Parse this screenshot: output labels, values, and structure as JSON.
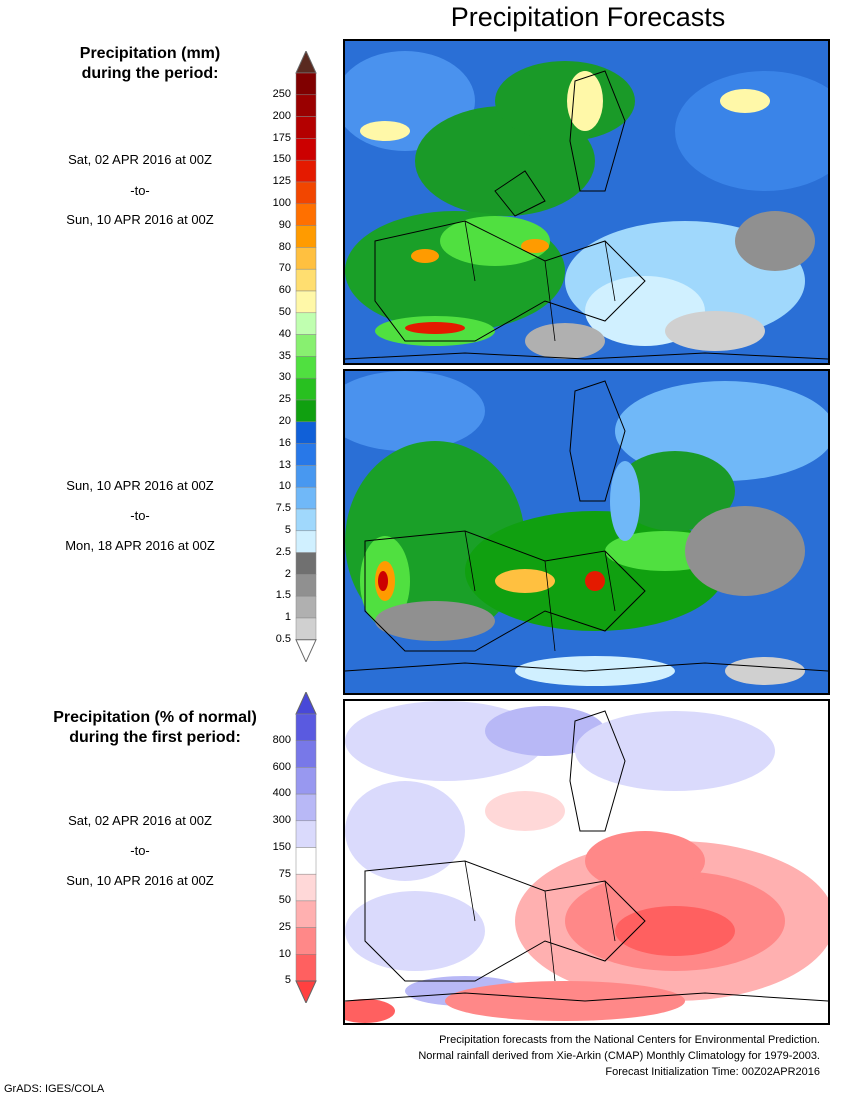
{
  "title": "Precipitation Forecasts",
  "legend_mm": {
    "heading_line1": "Precipitation (mm)",
    "heading_line2": "during the period:",
    "labels": [
      "250",
      "200",
      "175",
      "150",
      "125",
      "100",
      "90",
      "80",
      "70",
      "60",
      "50",
      "40",
      "35",
      "30",
      "25",
      "20",
      "16",
      "13",
      "10",
      "7.5",
      "5",
      "2.5",
      "2",
      "1.5",
      "1",
      "0.5"
    ],
    "colors": [
      "#800000",
      "#9a0000",
      "#b40000",
      "#cc0000",
      "#e41a00",
      "#f24600",
      "#ff7000",
      "#ff9b00",
      "#ffc040",
      "#ffde70",
      "#fff8a8",
      "#c0ffb0",
      "#88f070",
      "#50e040",
      "#28c020",
      "#10a010",
      "#1060d8",
      "#2878e8",
      "#4898f0",
      "#70b8f8",
      "#a0d8fc",
      "#d0f0ff",
      "#707070",
      "#909090",
      "#b0b0b0",
      "#d0d0d0"
    ],
    "top_arrow_color": "#5a2a20",
    "bottom_arrow_color": "#ffffff"
  },
  "period1": {
    "start": "Sat, 02 APR 2016 at 00Z",
    "sep": "-to-",
    "end": "Sun, 10 APR 2016 at 00Z"
  },
  "period2": {
    "start": "Sun, 10 APR 2016 at 00Z",
    "sep": "-to-",
    "end": "Mon, 18 APR 2016 at 00Z"
  },
  "legend_pct": {
    "heading_line1": "Precipitation (% of normal)",
    "heading_line2": "during the first period:",
    "labels": [
      "800",
      "600",
      "400",
      "300",
      "150",
      "75",
      "50",
      "25",
      "10",
      "5"
    ],
    "colors": [
      "#5a5ae0",
      "#7878e8",
      "#9898f0",
      "#b8b8f6",
      "#dadafc",
      "#ffffff",
      "#ffd8d8",
      "#ffb0b0",
      "#ff8888",
      "#ff6060"
    ],
    "top_arrow_color": "#4848d8",
    "bottom_arrow_color": "#ff4040"
  },
  "period3": {
    "start": "Sat, 02 APR 2016 at 00Z",
    "sep": "-to-",
    "end": "Sun, 10 APR 2016 at 00Z"
  },
  "footer": {
    "line1": "Precipitation forecasts from the National Centers for Environmental Prediction.",
    "line2": "Normal rainfall derived from Xie-Arkin (CMAP) Monthly Climatology for 1979-2003.",
    "line3": "Forecast Initialization Time: 00Z02APR2016"
  },
  "credit": "GrADS: IGES/COLA"
}
